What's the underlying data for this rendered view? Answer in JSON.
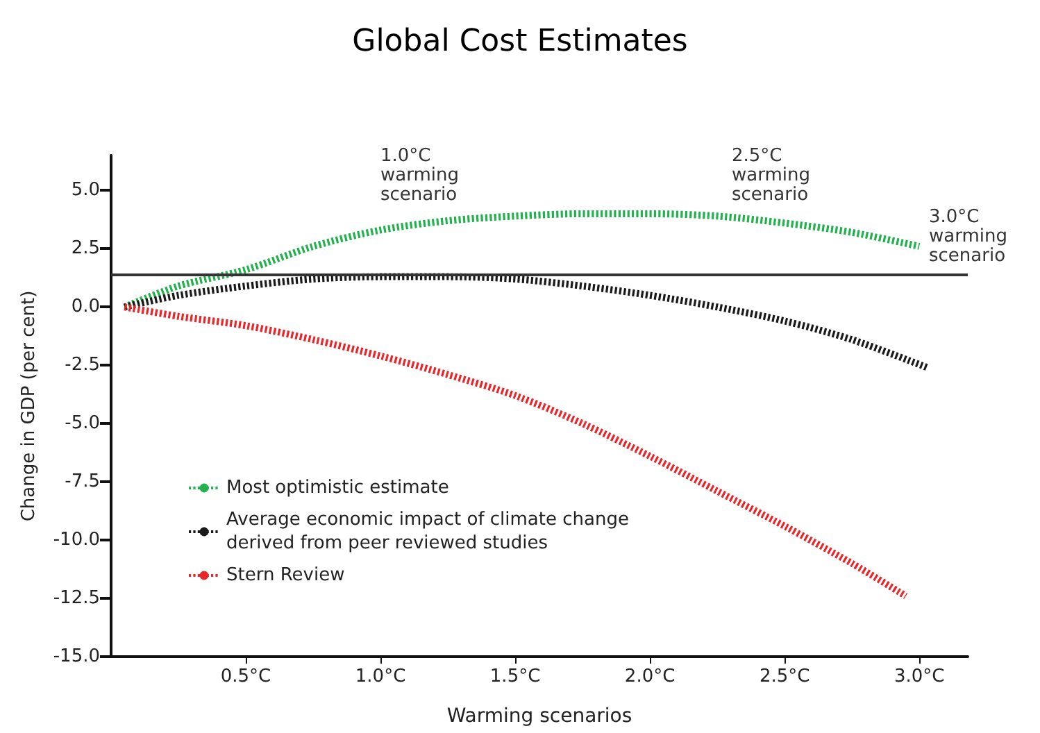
{
  "chart_data": {
    "type": "line",
    "title": "Global Cost Estimates",
    "xlabel": "Warming scenarios",
    "ylabel": "Change in GDP (per cent)",
    "xlim": [
      0,
      3.18
    ],
    "xticks": [
      {
        "value": 0.5,
        "label": "0.5°C"
      },
      {
        "value": 1,
        "label": "1.0°C"
      },
      {
        "value": 1.5,
        "label": "1.5°C"
      },
      {
        "value": 2,
        "label": "2.0°C"
      },
      {
        "value": 2.5,
        "label": "2.5°C"
      },
      {
        "value": 3,
        "label": "3.0°C"
      }
    ],
    "ylim": [
      -15,
      6.5
    ],
    "yticks": [
      {
        "value": -15,
        "label": "-15.0"
      },
      {
        "value": -12.5,
        "label": "-12.5"
      },
      {
        "value": -10,
        "label": "-10.0"
      },
      {
        "value": -7.5,
        "label": "-7.5"
      },
      {
        "value": -5,
        "label": "-5.0"
      },
      {
        "value": -2.5,
        "label": "-2.5"
      },
      {
        "value": 0,
        "label": "0.0"
      },
      {
        "value": 2.5,
        "label": "2.5"
      },
      {
        "value": 5,
        "label": "5.0"
      }
    ],
    "series": [
      {
        "name": "Most optimistic estimate",
        "color": "#22b14c",
        "x": [
          0.05,
          0.25,
          0.5,
          0.75,
          1.0,
          1.25,
          1.5,
          1.75,
          2.0,
          2.25,
          2.5,
          2.75,
          3.0
        ],
        "values": [
          0,
          0.9,
          1.6,
          2.6,
          3.3,
          3.7,
          3.9,
          4.0,
          4.0,
          3.9,
          3.6,
          3.2,
          2.6
        ]
      },
      {
        "name": "Average economic impact of climate change derived from peer reviewed studies",
        "color": "#1a1a1a",
        "x": [
          0.05,
          0.25,
          0.5,
          0.75,
          1.0,
          1.25,
          1.5,
          1.75,
          2.0,
          2.25,
          2.5,
          2.75,
          3.03
        ],
        "values": [
          0,
          0.5,
          0.9,
          1.2,
          1.3,
          1.3,
          1.2,
          0.9,
          0.5,
          0,
          -0.6,
          -1.4,
          -2.6
        ]
      },
      {
        "name": "Stern Review",
        "color": "#e8272a",
        "x": [
          0.05,
          0.25,
          0.5,
          0.75,
          1.0,
          1.25,
          1.5,
          1.75,
          2.0,
          2.25,
          2.5,
          2.75,
          2.95
        ],
        "values": [
          0,
          -0.4,
          -0.8,
          -1.4,
          -2.1,
          -2.9,
          -3.8,
          -5.0,
          -6.4,
          -7.9,
          -9.4,
          -11.0,
          -12.4
        ]
      }
    ],
    "ref_lines": [
      {
        "axis": "y",
        "value": 1.4,
        "color": "#333333"
      }
    ],
    "annotations": [
      "1.0°C warming scenario",
      "2.5°C warming scenario",
      "3.0°C warming scenario"
    ],
    "legend": "bottom left",
    "grid": false,
    "marker": "none",
    "line_style": "dotted"
  }
}
